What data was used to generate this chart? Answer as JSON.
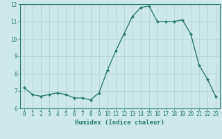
{
  "x": [
    0,
    1,
    2,
    3,
    4,
    5,
    6,
    7,
    8,
    9,
    10,
    11,
    12,
    13,
    14,
    15,
    16,
    17,
    18,
    19,
    20,
    21,
    22,
    23
  ],
  "y": [
    7.2,
    6.8,
    6.7,
    6.8,
    6.9,
    6.8,
    6.6,
    6.6,
    6.5,
    6.9,
    8.2,
    9.3,
    10.3,
    11.3,
    11.8,
    11.9,
    11.0,
    11.0,
    11.0,
    11.1,
    10.3,
    8.5,
    7.7,
    6.7
  ],
  "line_color": "#2d7d6e",
  "marker": "D",
  "marker_size": 2.0,
  "bg_color": "#cce8e8",
  "grid_color": "#b0d0d0",
  "xlabel": "Humidex (Indice chaleur)",
  "ylim": [
    6,
    12
  ],
  "xlim": [
    -0.5,
    23.5
  ],
  "yticks": [
    6,
    7,
    8,
    9,
    10,
    11,
    12
  ],
  "xticks": [
    0,
    1,
    2,
    3,
    4,
    5,
    6,
    7,
    8,
    9,
    10,
    11,
    12,
    13,
    14,
    15,
    16,
    17,
    18,
    19,
    20,
    21,
    22,
    23
  ],
  "tick_color": "#2d7d6e",
  "label_color": "#2d7d6e",
  "spine_color": "#2d7d6e",
  "xlabel_fontsize": 6.5,
  "tick_fontsize": 5.5
}
